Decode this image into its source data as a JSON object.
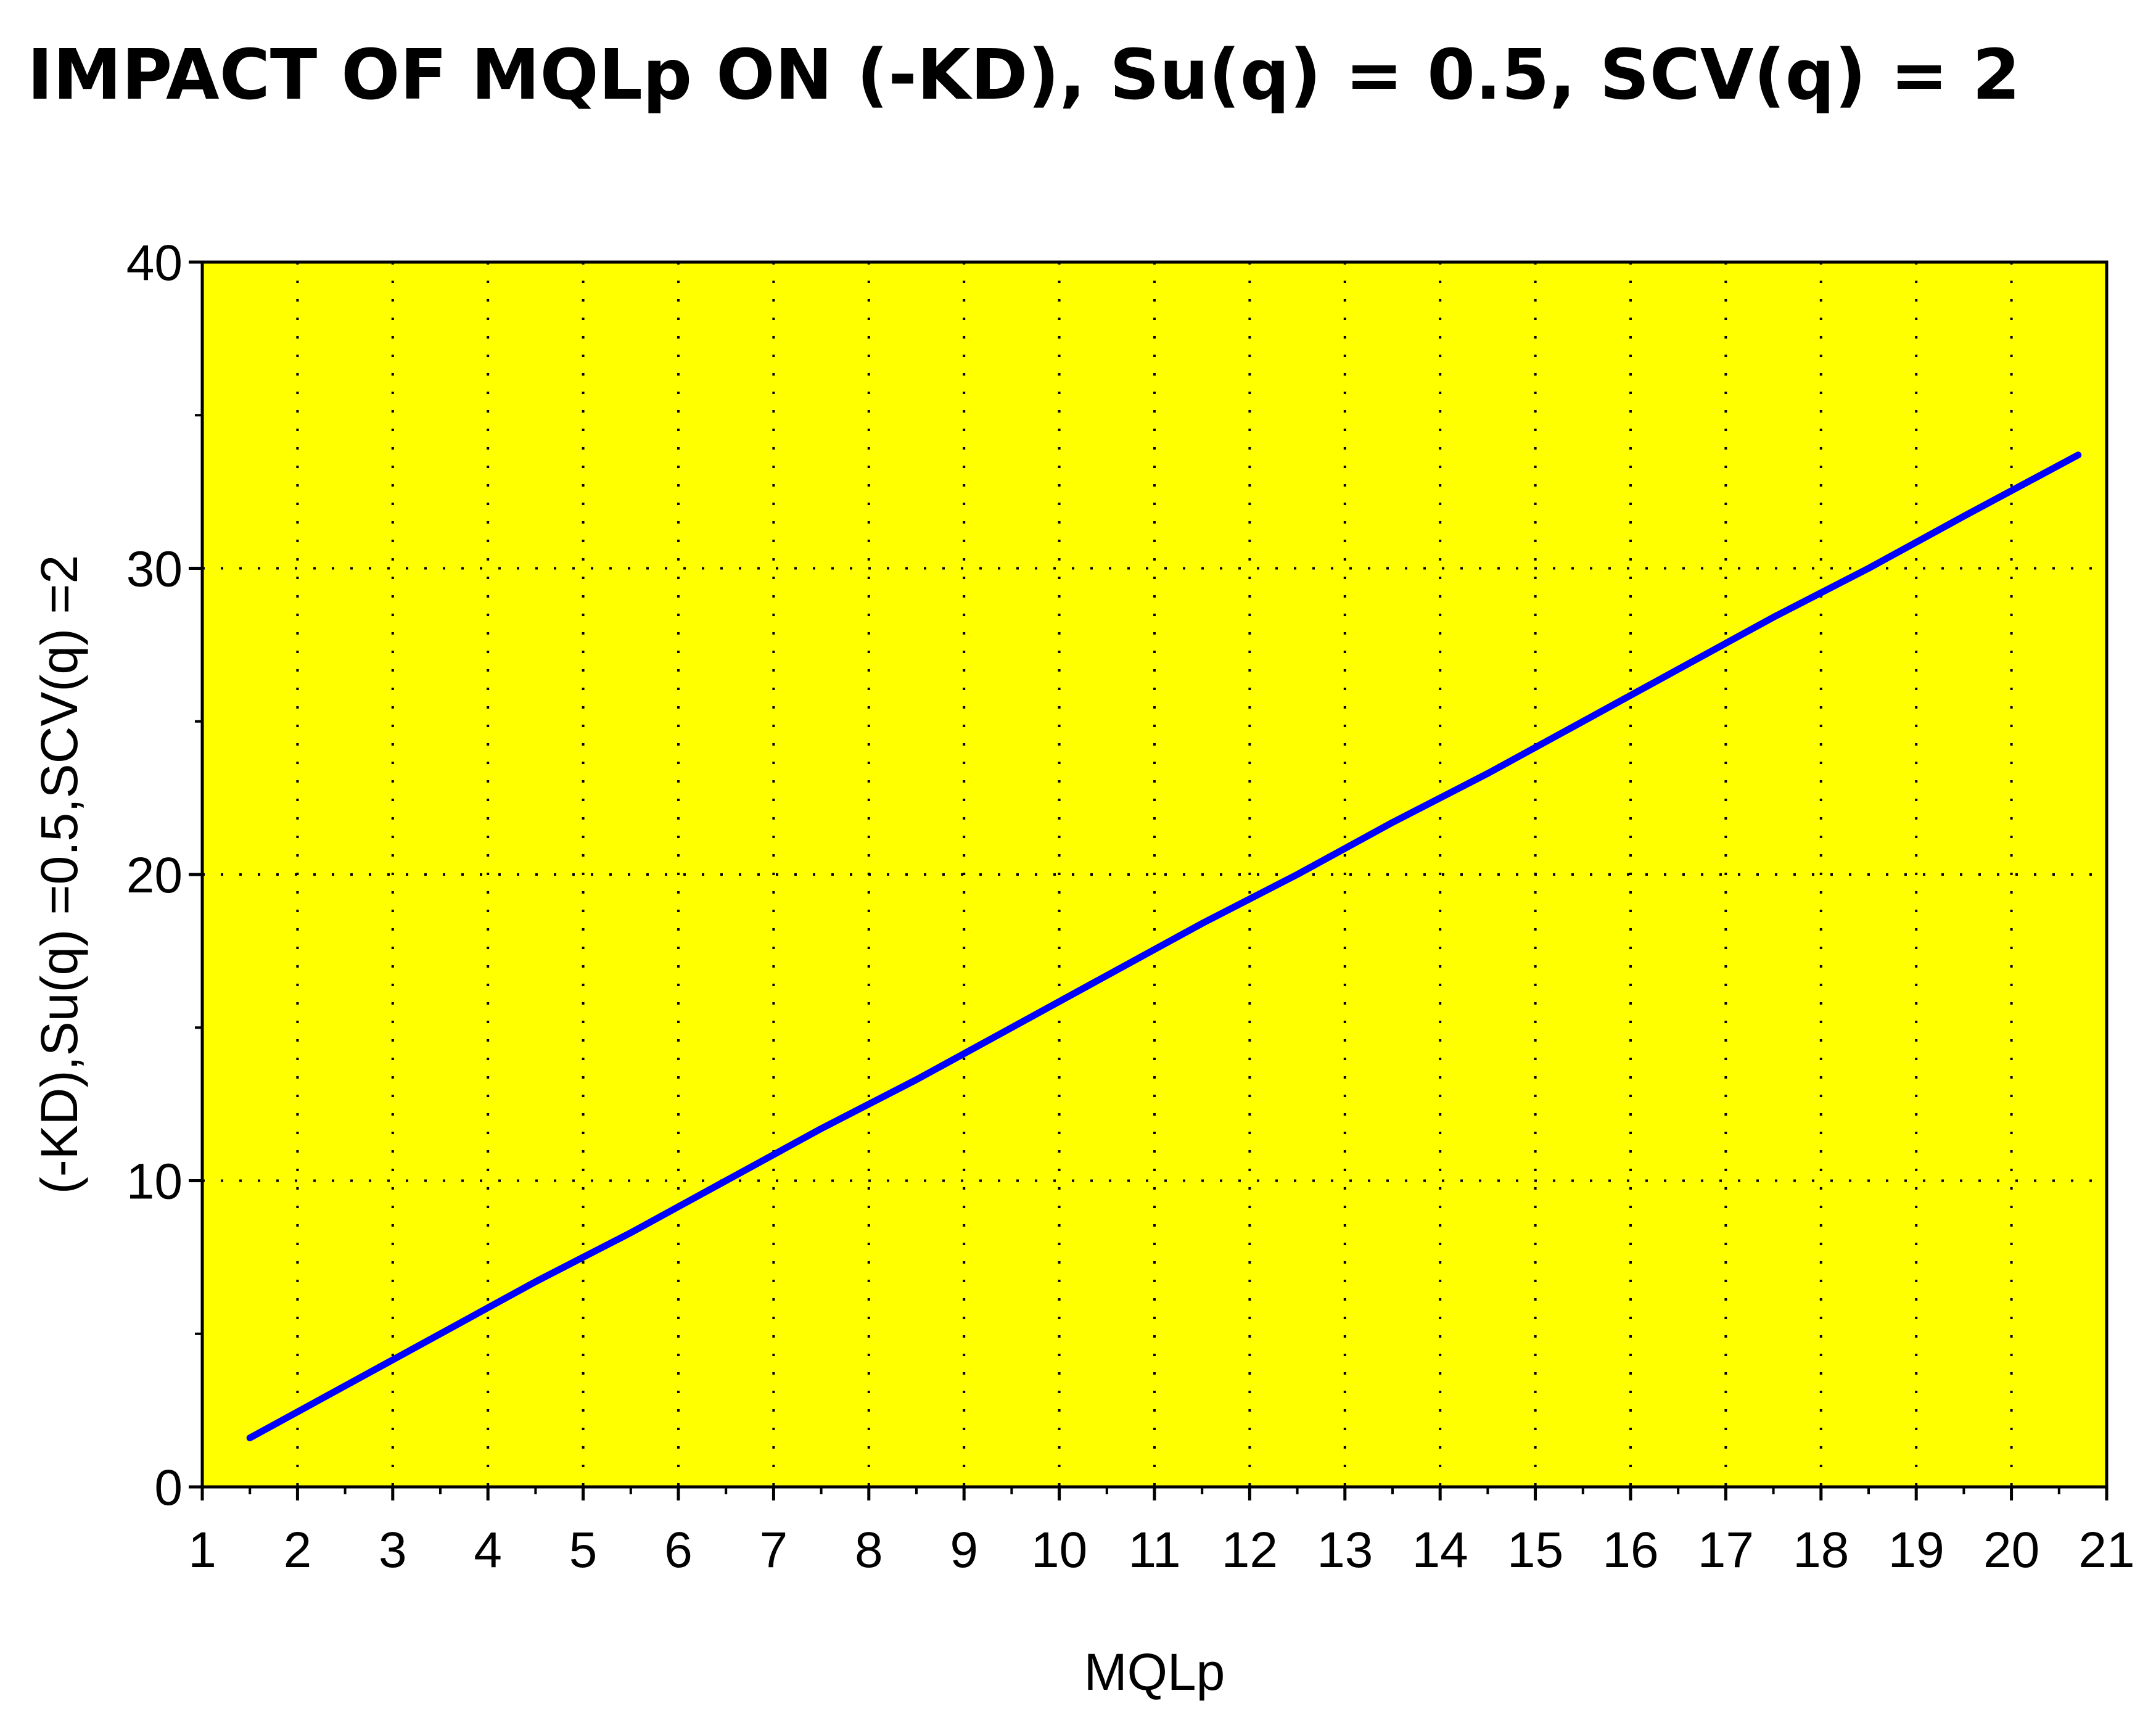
{
  "chart_data": {
    "type": "line",
    "title": "IMPACT OF MQLp ON (-KD), Su(q) = 0.5, SCV(q) = 2",
    "xlabel": "MQLp",
    "ylabel": "(-KD),Su(q) =0.5,SCV(q) =2",
    "xlim": [
      1,
      21
    ],
    "ylim": [
      0,
      40
    ],
    "x_ticks": [
      1,
      2,
      3,
      4,
      5,
      6,
      7,
      8,
      9,
      10,
      11,
      12,
      13,
      14,
      15,
      16,
      17,
      18,
      19,
      20,
      21
    ],
    "y_ticks": [
      0,
      10,
      20,
      30,
      40
    ],
    "grid": true,
    "background_color": "#ffff00",
    "series": [
      {
        "color": "#0000ff",
        "x": [
          1.5,
          2.5,
          3.5,
          4.5,
          5.5,
          6.5,
          7.5,
          8.5,
          9.5,
          10.5,
          11.5,
          12.5,
          13.5,
          14.5,
          15.5,
          16.5,
          17.5,
          18.5,
          19.5,
          20.7
        ],
        "y": [
          1.6,
          3.3,
          5.0,
          6.7,
          8.3,
          10.0,
          11.7,
          13.3,
          15.0,
          16.7,
          18.4,
          20.0,
          21.7,
          23.3,
          25.0,
          26.7,
          28.4,
          30.0,
          31.7,
          33.7
        ]
      }
    ]
  }
}
